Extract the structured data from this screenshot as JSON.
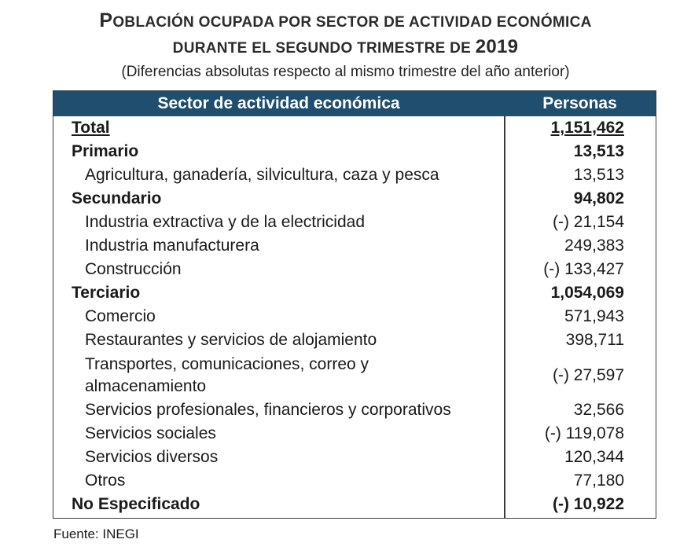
{
  "title": {
    "line1": [
      {
        "cap": "P",
        "rest": "OBLACIÓN OCUPADA POR SECTOR DE ACTIVIDAD ECONÓMICA"
      }
    ],
    "line2_text": "DURANTE EL SEGUNDO TRIMESTRE DE ",
    "line2_year": "2019",
    "subtitle": "(Diferencias absolutas respecto al mismo trimestre del año anterior)"
  },
  "table": {
    "headers": {
      "sector": "Sector de actividad económica",
      "persons": "Personas"
    },
    "rows": [
      {
        "label": "Total",
        "value": "1,151,462"
      },
      {
        "label": "Primario",
        "value": "13,513"
      },
      {
        "label": "Agricultura, ganadería, silvicultura, caza y pesca",
        "value": "13,513"
      },
      {
        "label": "Secundario",
        "value": "94,802"
      },
      {
        "label": "Industria extractiva y de la electricidad",
        "value": "(-) 21,154"
      },
      {
        "label": "Industria manufacturera",
        "value": "249,383"
      },
      {
        "label": "Construcción",
        "value": "(-) 133,427"
      },
      {
        "label": "Terciario",
        "value": "1,054,069"
      },
      {
        "label": "Comercio",
        "value": "571,943"
      },
      {
        "label": "Restaurantes y servicios de alojamiento",
        "value": "398,711"
      },
      {
        "label": "Transportes, comunicaciones, correo y almacenamiento",
        "value": "(-) 27,597"
      },
      {
        "label": "Servicios profesionales, financieros y corporativos",
        "value": "32,566"
      },
      {
        "label": "Servicios sociales",
        "value": "(-) 119,078"
      },
      {
        "label": "Servicios diversos",
        "value": "120,344"
      },
      {
        "label": "Otros",
        "value": "77,180"
      },
      {
        "label": "No Especificado",
        "value": "(-) 10,922"
      }
    ]
  },
  "source": "Fuente: INEGI",
  "colors": {
    "header_bg": "#1f4e6e",
    "header_text": "#ffffff",
    "border": "#3a3a3a"
  }
}
